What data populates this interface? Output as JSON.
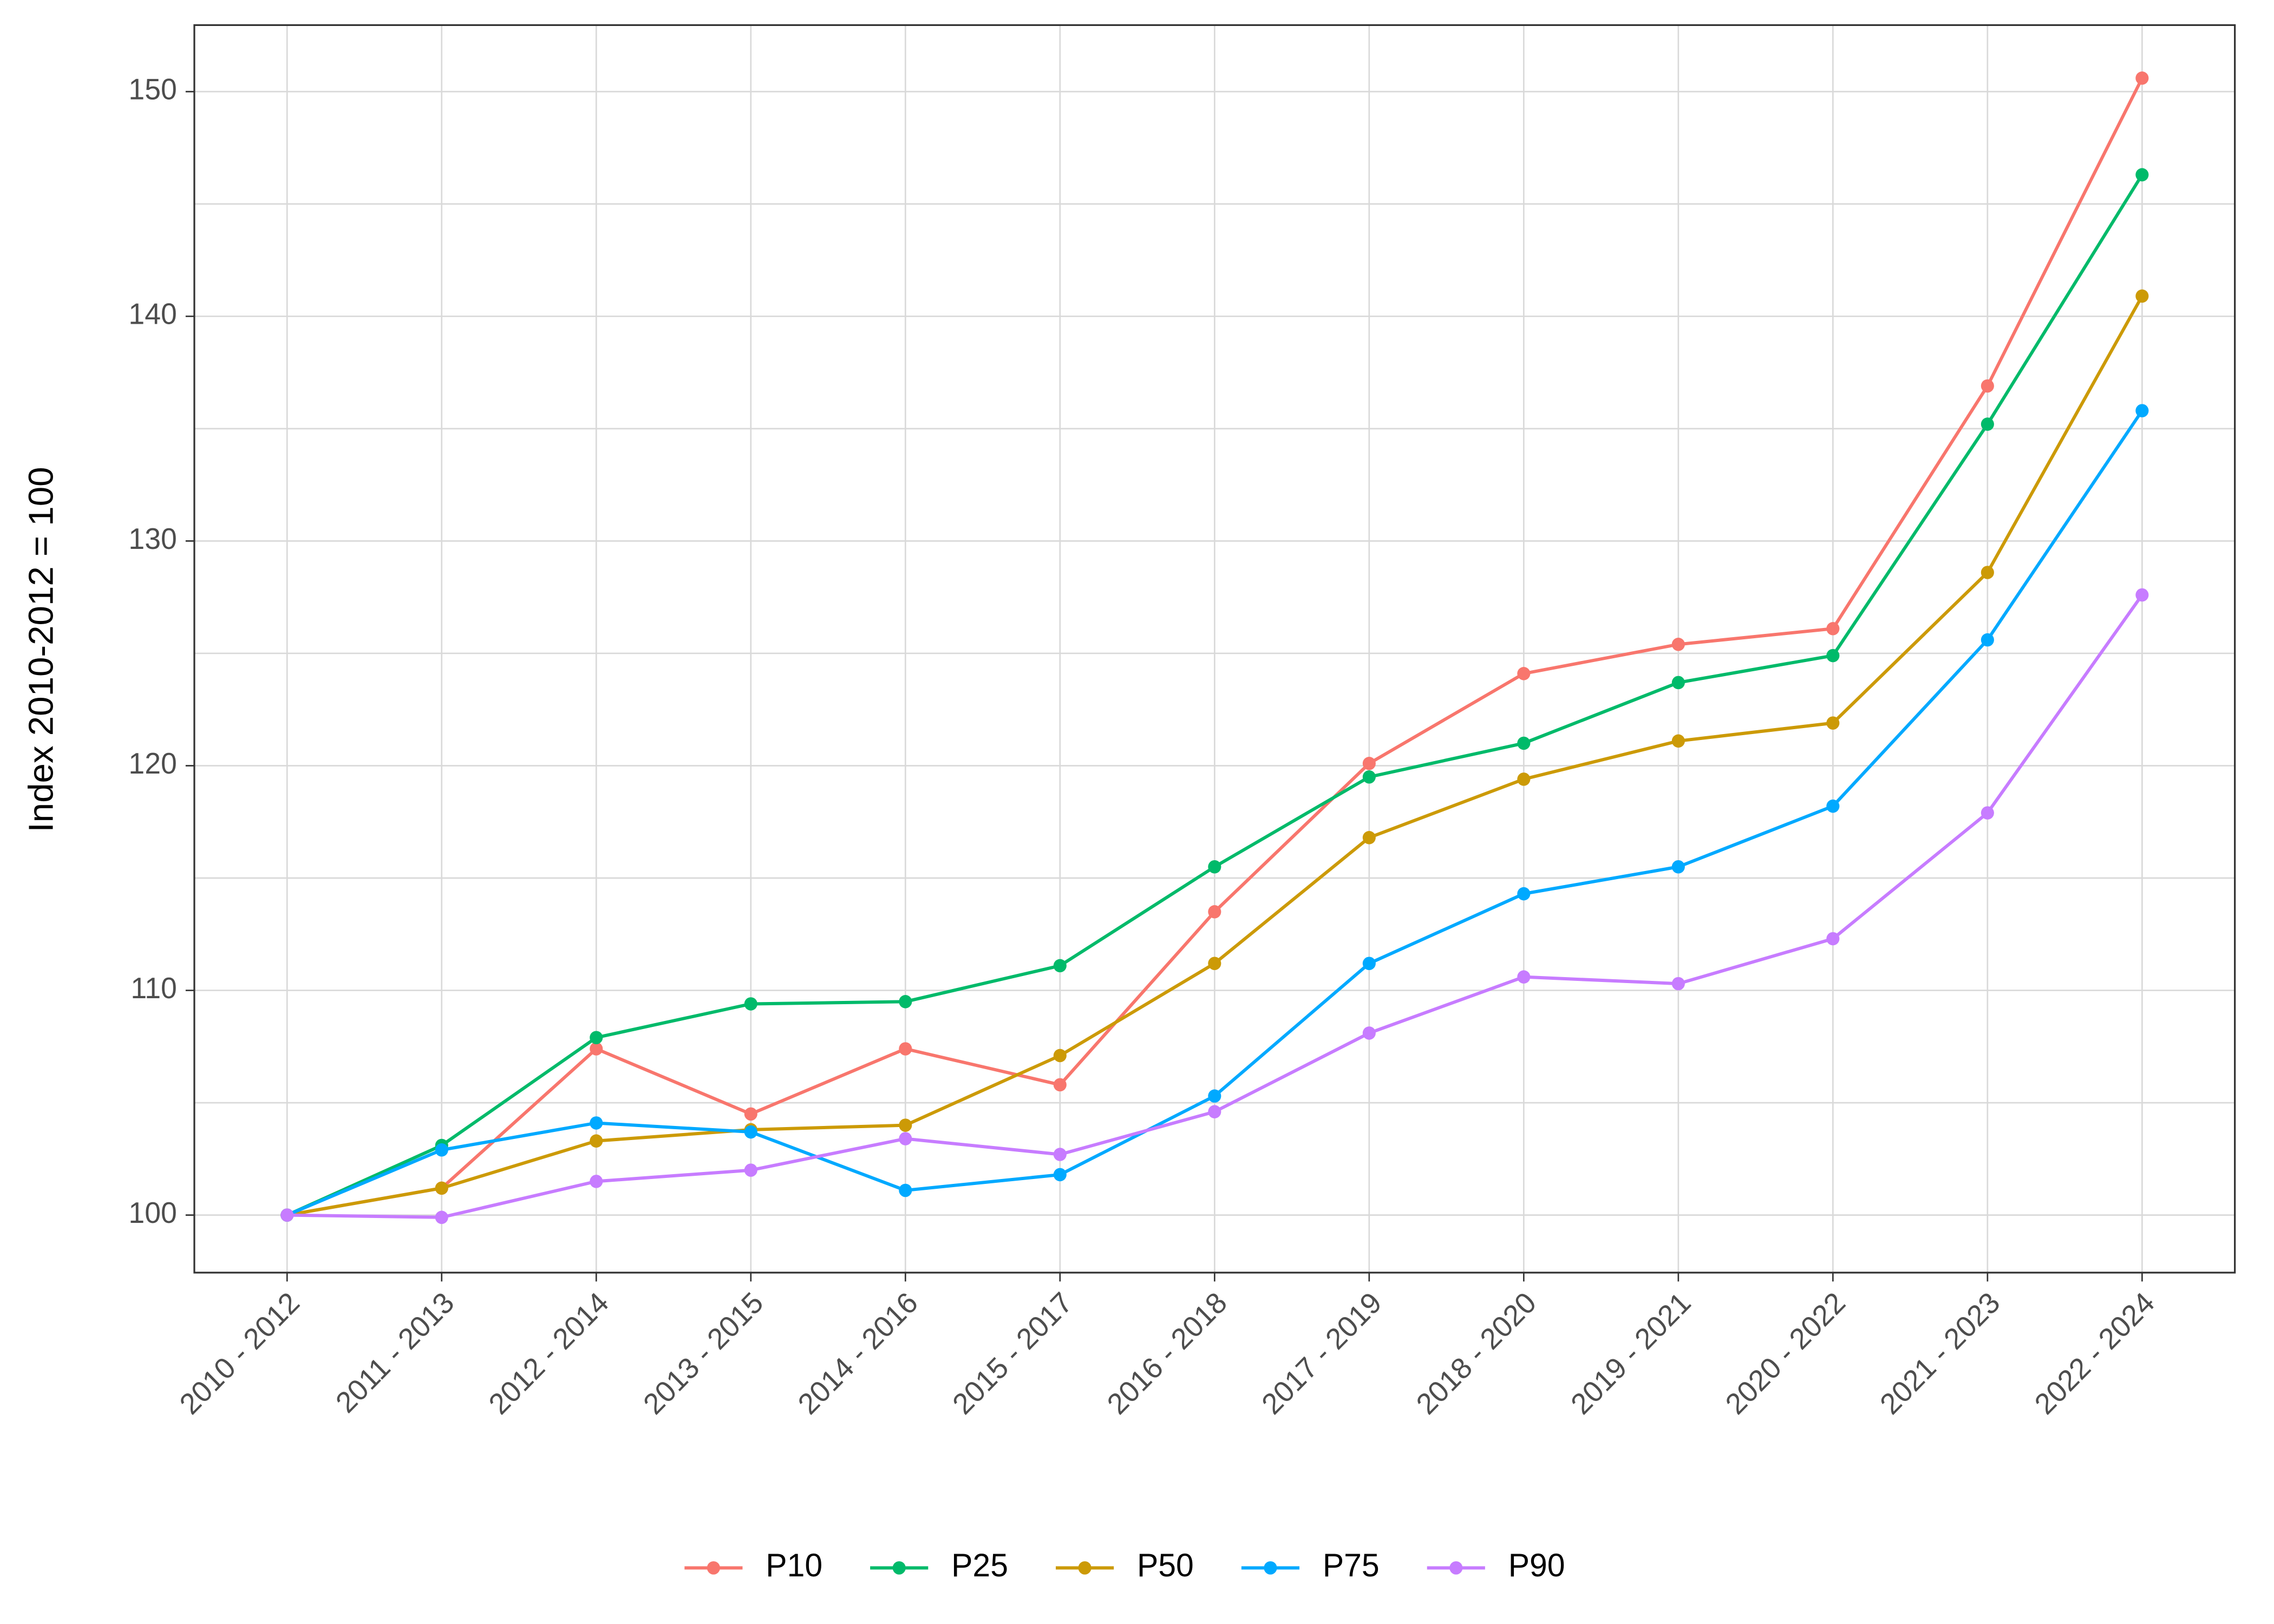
{
  "chart_data": {
    "type": "line",
    "y_label": "Index 2010-2012 = 100",
    "categories": [
      "2010 - 2012",
      "2011 - 2013",
      "2012 - 2014",
      "2013 - 2015",
      "2014 - 2016",
      "2015 - 2017",
      "2016 - 2018",
      "2017 - 2019",
      "2018 - 2020",
      "2019 - 2021",
      "2020 - 2022",
      "2021 - 2023",
      "2022 - 2024"
    ],
    "series": [
      {
        "name": "P10",
        "color": "#F8766D",
        "values": [
          100,
          101.2,
          107.4,
          104.5,
          107.4,
          105.8,
          113.5,
          120.1,
          124.1,
          125.4,
          126.1,
          136.9,
          150.6
        ]
      },
      {
        "name": "P25",
        "color": "#00BA6A",
        "values": [
          100,
          103.1,
          107.9,
          109.4,
          109.5,
          111.1,
          115.5,
          119.5,
          121.0,
          123.7,
          124.9,
          135.2,
          146.3
        ]
      },
      {
        "name": "P50",
        "color": "#CC9A06",
        "values": [
          100,
          101.2,
          103.3,
          103.8,
          104.0,
          107.1,
          111.2,
          116.8,
          119.4,
          121.1,
          121.9,
          128.6,
          140.9
        ]
      },
      {
        "name": "P75",
        "color": "#00A9FF",
        "values": [
          100,
          102.9,
          104.1,
          103.7,
          101.1,
          101.8,
          105.3,
          111.2,
          114.3,
          115.5,
          118.2,
          125.6,
          135.8
        ]
      },
      {
        "name": "P90",
        "color": "#C77CFF",
        "values": [
          100,
          99.9,
          101.5,
          102.0,
          103.4,
          102.7,
          104.6,
          108.1,
          110.6,
          110.3,
          112.3,
          117.9,
          127.6
        ]
      }
    ],
    "ylim": [
      97.44,
      152.96
    ],
    "yticks": [
      100,
      110,
      120,
      130,
      140,
      150
    ],
    "grid": true,
    "legend": "bottom"
  }
}
